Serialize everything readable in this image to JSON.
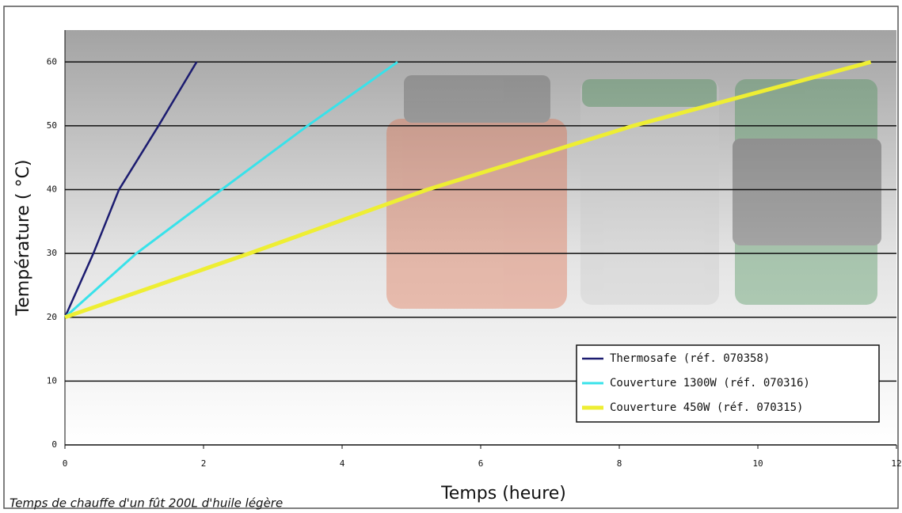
{
  "chart_data": {
    "type": "line",
    "xlabel": "Temps (heure)",
    "ylabel": "Température ( °C)",
    "caption": "Temps de chauffe d'un fût 200L d'huile légère",
    "xlim": [
      0,
      12
    ],
    "xticks": [
      0,
      2,
      4,
      6,
      8,
      10,
      12
    ],
    "ylim": [
      0,
      65
    ],
    "yticks": [
      0,
      10,
      20,
      30,
      40,
      50,
      60
    ],
    "grid": true,
    "legend": "lower-right",
    "series": [
      {
        "name": "Thermosafe (réf. 070358)",
        "color": "#1c1c70",
        "x": [
          0,
          0.41,
          0.78,
          1.35,
          1.9
        ],
        "values": [
          20,
          30,
          40,
          50,
          60
        ]
      },
      {
        "name": "Couverture 1300W (réf. 070316)",
        "color": "#38e2ea",
        "x": [
          0,
          1.03,
          2.26,
          3.5,
          4.8
        ],
        "values": [
          20,
          30,
          40,
          50,
          60
        ]
      },
      {
        "name": "Couverture 450W (réf. 070315)",
        "color": "#eeee33",
        "x": [
          0,
          2.66,
          5.23,
          8.2,
          11.63
        ],
        "values": [
          20,
          30,
          40,
          50,
          60
        ]
      }
    ]
  }
}
